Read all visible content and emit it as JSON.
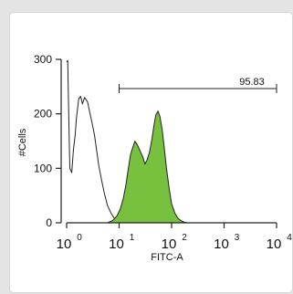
{
  "chart_data": {
    "type": "area",
    "title": "",
    "xlabel": "FITC-A",
    "ylabel": "#Cells",
    "x_scale": "log",
    "xlim": [
      1,
      10000
    ],
    "ylim": [
      0,
      300
    ],
    "grid": false,
    "legend": "none",
    "x_ticks": [
      {
        "base": "10",
        "exp": "0",
        "value": 1
      },
      {
        "base": "10",
        "exp": "1",
        "value": 10
      },
      {
        "base": "10",
        "exp": "2",
        "value": 100
      },
      {
        "base": "10",
        "exp": "3",
        "value": 1000
      },
      {
        "base": "10",
        "exp": "4",
        "value": 10000
      }
    ],
    "y_ticks": [
      "0",
      "100",
      "200",
      "300"
    ],
    "series": [
      {
        "style": "outline",
        "color": "#222222",
        "fill": "none",
        "x": [
          1.0,
          1.05,
          1.1,
          1.15,
          1.25,
          1.35,
          1.45,
          1.55,
          1.7,
          1.85,
          2.0,
          2.2,
          2.5,
          2.8,
          3.1,
          3.4,
          3.7,
          4.1,
          4.6,
          5.2,
          6.0,
          7.0,
          8.0,
          9.0,
          10.0,
          11.5,
          13.0
        ],
        "y": [
          295,
          298,
          190,
          100,
          92,
          135,
          160,
          195,
          228,
          232,
          218,
          230,
          222,
          200,
          180,
          160,
          135,
          105,
          80,
          55,
          32,
          18,
          9,
          4,
          2,
          1,
          0
        ]
      },
      {
        "style": "filled",
        "color": "#222222",
        "fill": "#77c13e",
        "x": [
          6.0,
          7.5,
          9.0,
          10.5,
          12.0,
          13.5,
          15.0,
          16.5,
          18.0,
          20.0,
          22.5,
          25.0,
          28.0,
          31.0,
          34.0,
          38.0,
          42.0,
          46.0,
          50.0,
          55.0,
          60.0,
          66.0,
          72.0,
          80.0,
          90.0,
          100.0,
          115.0,
          130.0,
          150.0,
          175.0,
          200.0
        ],
        "y": [
          0,
          4,
          12,
          25,
          45,
          70,
          100,
          125,
          137,
          150,
          142,
          132,
          122,
          108,
          115,
          130,
          152,
          178,
          198,
          205,
          195,
          172,
          140,
          100,
          62,
          35,
          18,
          9,
          4,
          1,
          0
        ]
      }
    ],
    "gate": {
      "label": "95.83",
      "x_start": 10,
      "x_end": 10000
    }
  }
}
